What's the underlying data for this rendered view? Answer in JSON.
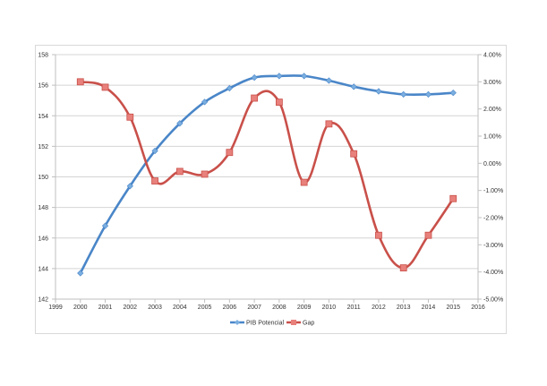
{
  "chart_data": {
    "type": "line",
    "title": "",
    "xlabel": "",
    "ylabel": "",
    "y2label": "",
    "x": [
      2000,
      2001,
      2002,
      2003,
      2004,
      2005,
      2006,
      2007,
      2008,
      2009,
      2010,
      2011,
      2012,
      2013,
      2014,
      2015
    ],
    "series": [
      {
        "name": "PIB Potencial",
        "axis": "left",
        "color": "#4a86c8",
        "marker": "diamond",
        "smooth": true,
        "values": [
          143.7,
          146.8,
          149.4,
          151.7,
          153.5,
          154.9,
          155.8,
          156.5,
          156.6,
          156.6,
          156.3,
          155.9,
          155.6,
          155.4,
          155.4,
          155.5
        ]
      },
      {
        "name": "Gap",
        "axis": "right",
        "color": "#c9504a",
        "marker": "square",
        "smooth": true,
        "values": [
          3.0,
          2.8,
          1.7,
          -0.65,
          -0.3,
          -0.4,
          0.4,
          2.4,
          2.25,
          -0.7,
          1.45,
          0.35,
          -2.65,
          -3.85,
          -2.65,
          -1.3
        ]
      }
    ],
    "xlim": [
      1999,
      2016
    ],
    "xticks": [
      "1999",
      "2000",
      "2001",
      "2002",
      "2003",
      "2004",
      "2005",
      "2006",
      "2007",
      "2008",
      "2009",
      "2010",
      "2011",
      "2012",
      "2013",
      "2014",
      "2015",
      "2016"
    ],
    "ylim": [
      142,
      158
    ],
    "yticks": [
      "142",
      "144",
      "146",
      "148",
      "150",
      "152",
      "154",
      "156",
      "158"
    ],
    "y2lim": [
      -5,
      4
    ],
    "y2ticks": [
      "-5.00%",
      "-4.00%",
      "-3.00%",
      "-2.00%",
      "-1.00%",
      "0.00%",
      "1.00%",
      "2.00%",
      "3.00%",
      "4.00%"
    ],
    "grid": true,
    "legend_position": "bottom"
  },
  "legend": {
    "items": [
      {
        "label": "PIB Potencial",
        "color": "#4a86c8"
      },
      {
        "label": "Gap",
        "color": "#c9504a"
      }
    ]
  }
}
